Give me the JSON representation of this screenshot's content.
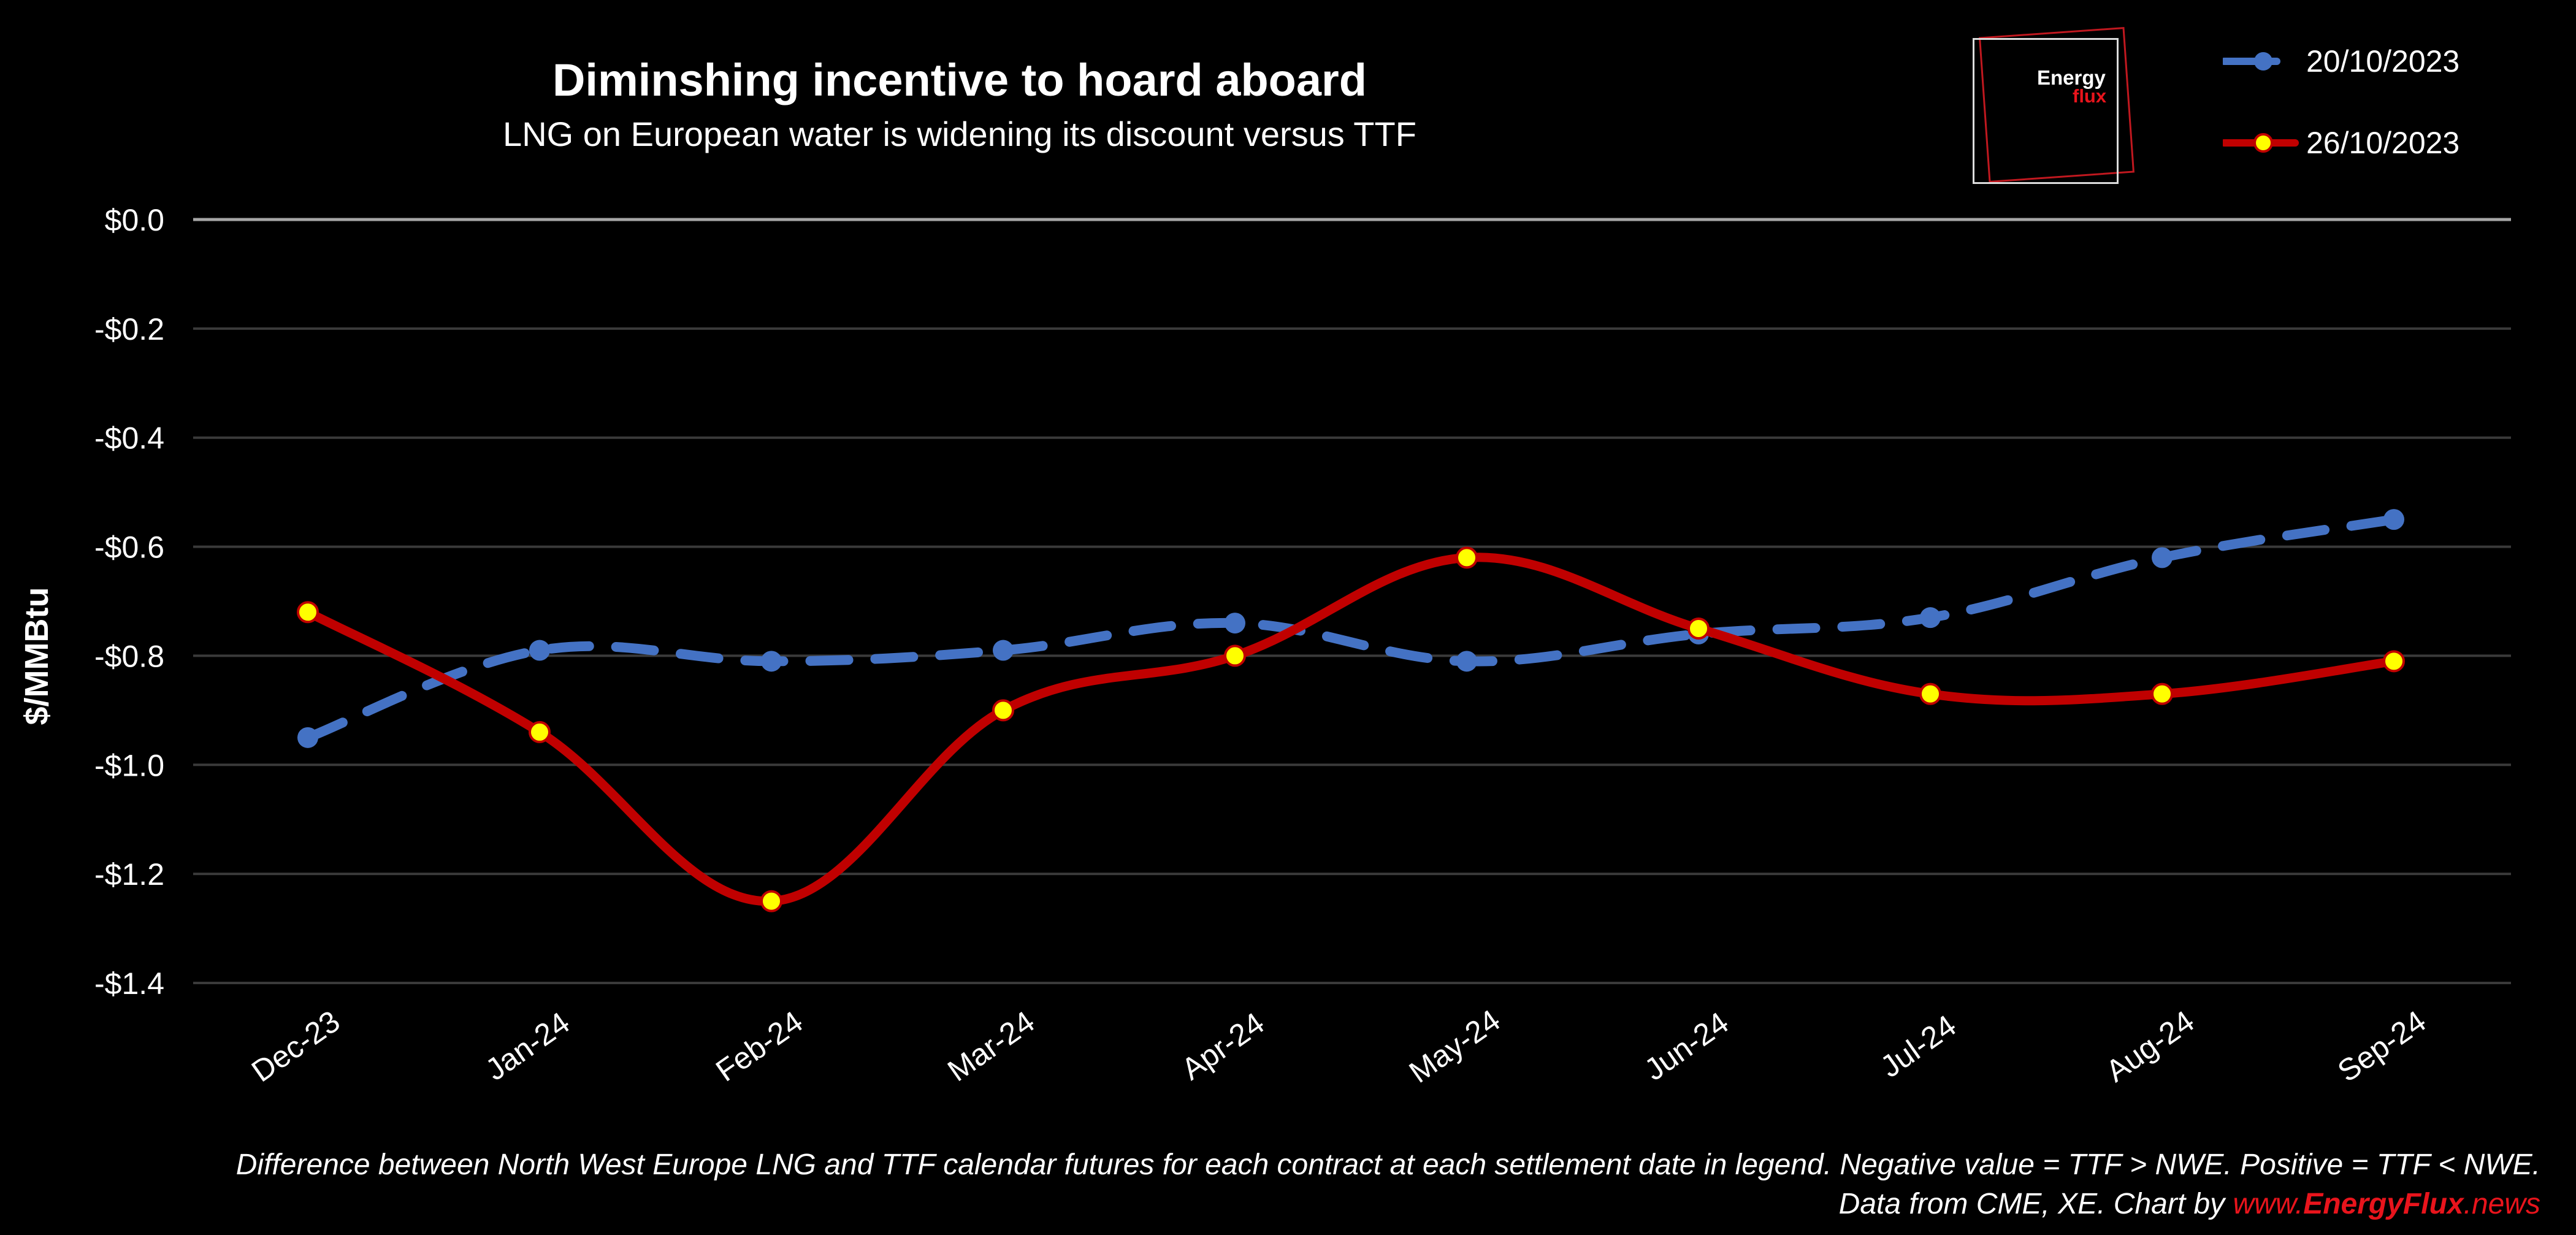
{
  "chart_data": {
    "type": "line",
    "title": "Diminshing incentive to hoard aboard",
    "subtitle": "LNG on European water is widening its discount versus TTF",
    "ylabel": "$/MMBtu",
    "ylim": [
      -1.4,
      0.0
    ],
    "yticks": [
      "$0.0",
      "-$0.2",
      "-$0.4",
      "-$0.6",
      "-$0.8",
      "-$1.0",
      "-$1.2",
      "-$1.4"
    ],
    "ytick_values": [
      0.0,
      -0.2,
      -0.4,
      -0.6,
      -0.8,
      -1.0,
      -1.2,
      -1.4
    ],
    "categories": [
      "Dec-23",
      "Jan-24",
      "Feb-24",
      "Mar-24",
      "Apr-24",
      "May-24",
      "Jun-24",
      "Jul-24",
      "Aug-24",
      "Sep-24"
    ],
    "grid": true,
    "legend_position": "top-right",
    "series": [
      {
        "name": "20/10/2023",
        "color": "#4472c4",
        "style": "dashed",
        "marker_fill": "#4472c4",
        "values": [
          -0.95,
          -0.79,
          -0.81,
          -0.79,
          -0.74,
          -0.81,
          -0.76,
          -0.73,
          -0.62,
          -0.55
        ]
      },
      {
        "name": "26/10/2023",
        "color": "#c00000",
        "style": "solid",
        "marker_fill": "#ffff00",
        "values": [
          -0.72,
          -0.94,
          -1.25,
          -0.9,
          -0.8,
          -0.62,
          -0.75,
          -0.87,
          -0.87,
          -0.81
        ]
      }
    ]
  },
  "logo": {
    "line1": "Energy",
    "line2": "flux"
  },
  "footnote": {
    "line1": "Difference between North West Europe LNG and TTF calendar futures for  each contract at each settlement date in legend. Negative value = TTF > NWE. Positive = TTF < NWE.",
    "line2_prefix": "Data from CME, XE. Chart by ",
    "site_www": "www.",
    "site_name": "EnergyFlux",
    "site_tld": ".news"
  },
  "colors": {
    "background": "#000000",
    "grid": "#3a3a3a",
    "zero_line": "#a6a6a6",
    "text": "#ffffff",
    "brand_red": "#e8141c"
  }
}
